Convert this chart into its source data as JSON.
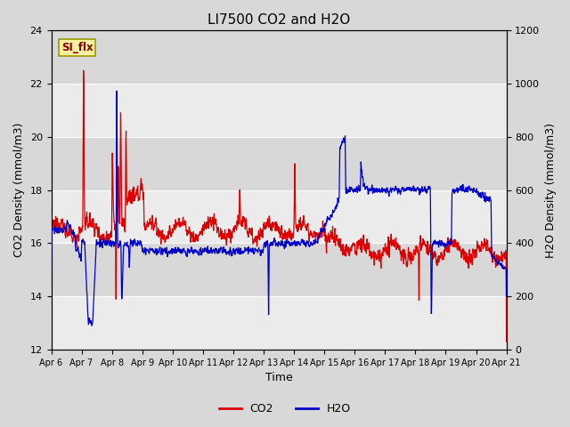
{
  "title": "LI7500 CO2 and H2O",
  "xlabel": "Time",
  "ylabel_left": "CO2 Density (mmol/m3)",
  "ylabel_right": "H2O Density (mmol/m3)",
  "annotation_text": "SI_flx",
  "annotation_bg": "#f5f0a0",
  "annotation_fg": "#8b0000",
  "co2_color": "#dd0000",
  "h2o_color": "#0000cc",
  "ylim_left": [
    12,
    24
  ],
  "ylim_right": [
    0,
    1200
  ],
  "yticks_left": [
    12,
    14,
    16,
    18,
    20,
    22,
    24
  ],
  "yticks_right": [
    0,
    200,
    400,
    600,
    800,
    1000,
    1200
  ],
  "xtick_labels": [
    "Apr 6",
    "Apr 7",
    "Apr 8",
    "Apr 9",
    "Apr 10",
    "Apr 11",
    "Apr 12",
    "Apr 13",
    "Apr 14",
    "Apr 15",
    "Apr 16",
    "Apr 17",
    "Apr 18",
    "Apr 19",
    "Apr 20",
    "Apr 21"
  ],
  "outer_bg": "#d8d8d8",
  "plot_bg": "#e8e8e8",
  "band_light": "#ebebeb",
  "band_dark": "#d8d8d8",
  "grid_color": "#ffffff",
  "linewidth": 0.9,
  "legend_co2": "CO2",
  "legend_h2o": "H2O",
  "title_fontsize": 11,
  "axis_fontsize": 9,
  "tick_fontsize": 8
}
